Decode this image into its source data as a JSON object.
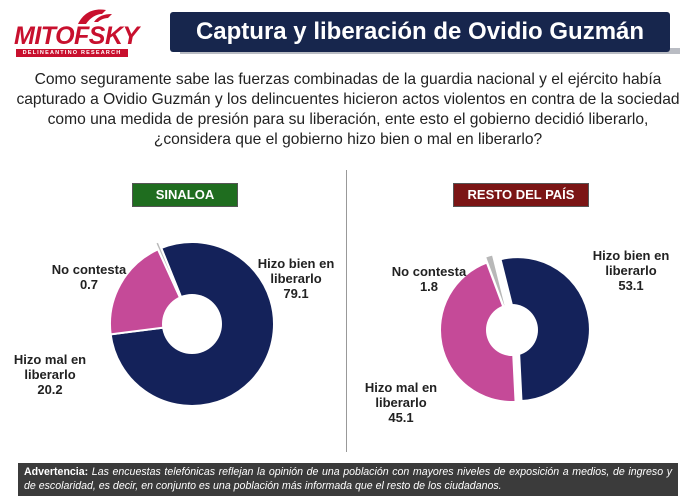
{
  "logo": {
    "name": "MITOFSKY",
    "tagline": "DELINEANTINO RESEARCH"
  },
  "title": "Captura y liberación de Ovidio Guzmán",
  "question": "Como seguramente sabe las fuerzas combinadas de la guardia nacional y el ejército había capturado a Ovidio Guzmán y los delincuentes hicieron actos violentos en contra de la sociedad como una medida de presión para su liberación, ente esto el gobierno decidió liberarlo, ¿considera que el gobierno hizo bien o mal en liberarlo?",
  "colors": {
    "bien": "#14225a",
    "mal": "#c54a98",
    "no_contesta": "#b8b8b8"
  },
  "chart_data": [
    {
      "type": "pie",
      "title": "SINALOA",
      "categories": [
        "Hizo bien en liberarlo",
        "Hizo mal en liberarlo",
        "No contesta"
      ],
      "values": [
        79.1,
        20.2,
        0.7
      ],
      "labels": {
        "bien_1": "Hizo bien en",
        "bien_2": "liberarlo",
        "bien_v": "79.1",
        "mal_1": "Hizo mal en",
        "mal_2": "liberarlo",
        "mal_v": "20.2",
        "nc_1": "No contesta",
        "nc_v": "0.7"
      }
    },
    {
      "type": "pie",
      "title": "RESTO DEL PAÍS",
      "categories": [
        "Hizo bien en liberarlo",
        "Hizo mal en liberarlo",
        "No contesta"
      ],
      "values": [
        53.1,
        45.1,
        1.8
      ],
      "labels": {
        "bien_1": "Hizo bien en",
        "bien_2": "liberarlo",
        "bien_v": "53.1",
        "mal_1": "Hizo mal en",
        "mal_2": "liberarlo",
        "mal_v": "45.1",
        "nc_1": "No contesta",
        "nc_v": "1.8"
      }
    }
  ],
  "footer": {
    "prefix": "Advertencia:",
    "text": "Las encuestas telefónicas reflejan la opinión de una población con mayores niveles de exposición a medios, de ingreso y de escolaridad, es decir, en conjunto es una población más informada que el resto de los ciudadanos."
  }
}
